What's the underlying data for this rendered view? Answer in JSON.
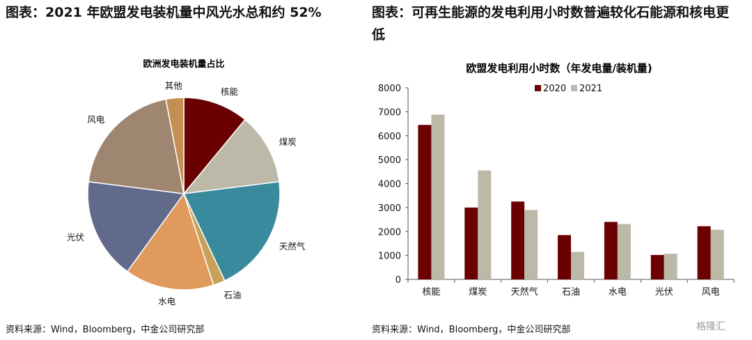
{
  "left_panel": {
    "title": "图表：2021 年欧盟发电装机量中风光水总和约 52%",
    "source": "资料来源：Wind，Bloomberg，中金公司研究部"
  },
  "right_panel": {
    "title": "图表：可再生能源的发电利用小时数普遍较化石能源和核电更低",
    "source": "资料来源：Wind，Bloomberg，中金公司研究部"
  },
  "watermark": "格隆汇",
  "chart_data": [
    {
      "type": "pie",
      "title": "欧洲发电装机量占比",
      "slices": [
        {
          "label": "核能",
          "value": 11.0,
          "color": "#6b0000"
        },
        {
          "label": "煤炭",
          "value": 12.0,
          "color": "#bdb9a8"
        },
        {
          "label": "天然气",
          "value": 20.0,
          "color": "#3a8a9e"
        },
        {
          "label": "石油",
          "value": 2.0,
          "color": "#c9a15a"
        },
        {
          "label": "水电",
          "value": 15.0,
          "color": "#e09a5c"
        },
        {
          "label": "光伏",
          "value": 17.0,
          "color": "#616a8a"
        },
        {
          "label": "风电",
          "value": 20.0,
          "color": "#9e8670"
        },
        {
          "label": "其他",
          "value": 3.0,
          "color": "#c48f52"
        }
      ]
    },
    {
      "type": "bar",
      "title": "欧盟发电利用小时数（年发电量/装机量)",
      "categories": [
        "核能",
        "煤炭",
        "天然气",
        "石油",
        "水电",
        "光伏",
        "风电"
      ],
      "series": [
        {
          "name": "2020",
          "color": "#6b0000",
          "values": [
            6450,
            3000,
            3250,
            1850,
            2400,
            1020,
            2220
          ]
        },
        {
          "name": "2021",
          "color": "#bdb9a8",
          "values": [
            6880,
            4550,
            2900,
            1150,
            2310,
            1070,
            2070
          ]
        }
      ],
      "ylim": [
        0,
        8000
      ],
      "yticks": [
        0,
        1000,
        2000,
        3000,
        4000,
        5000,
        6000,
        7000,
        8000
      ],
      "legend": "top-center",
      "grid": false
    }
  ]
}
